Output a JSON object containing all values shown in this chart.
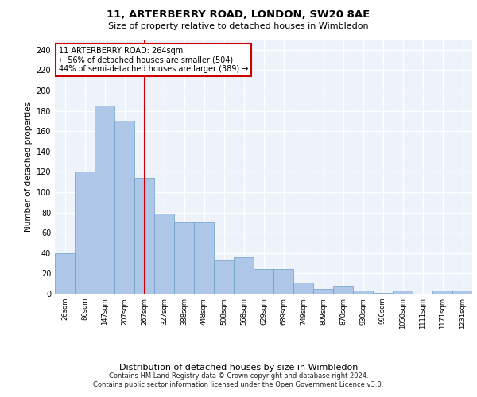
{
  "title1": "11, ARTERBERRY ROAD, LONDON, SW20 8AE",
  "title2": "Size of property relative to detached houses in Wimbledon",
  "xlabel": "Distribution of detached houses by size in Wimbledon",
  "ylabel": "Number of detached properties",
  "footer1": "Contains HM Land Registry data © Crown copyright and database right 2024.",
  "footer2": "Contains public sector information licensed under the Open Government Licence v3.0.",
  "categories": [
    "26sqm",
    "86sqm",
    "147sqm",
    "207sqm",
    "267sqm",
    "327sqm",
    "388sqm",
    "448sqm",
    "508sqm",
    "568sqm",
    "629sqm",
    "689sqm",
    "749sqm",
    "809sqm",
    "870sqm",
    "930sqm",
    "990sqm",
    "1050sqm",
    "1111sqm",
    "1171sqm",
    "1231sqm"
  ],
  "values": [
    40,
    120,
    185,
    170,
    114,
    79,
    70,
    70,
    33,
    36,
    24,
    24,
    11,
    5,
    8,
    3,
    1,
    3,
    0,
    3,
    3
  ],
  "bar_color": "#aec6e8",
  "bar_edge_color": "#6a9fc8",
  "vline_pos": 4.0,
  "vline_color": "#cc0000",
  "annotation_title": "11 ARTERBERRY ROAD: 264sqm",
  "annotation_line1": "← 56% of detached houses are smaller (504)",
  "annotation_line2": "44% of semi-detached houses are larger (389) →",
  "annotation_box_edgecolor": "#cc0000",
  "ylim": [
    0,
    250
  ],
  "yticks": [
    0,
    20,
    40,
    60,
    80,
    100,
    120,
    140,
    160,
    180,
    200,
    220,
    240
  ],
  "background_color": "#edf2fb",
  "grid_color": "#ffffff",
  "title1_fontsize": 9.5,
  "title2_fontsize": 8,
  "ylabel_fontsize": 7.5,
  "xlabel_fontsize": 8,
  "tick_fontsize": 6,
  "footer_fontsize": 6,
  "ann_fontsize": 7
}
